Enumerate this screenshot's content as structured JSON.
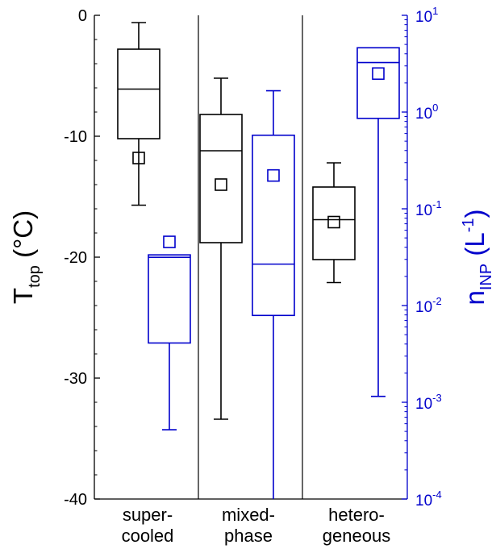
{
  "chart_data": {
    "type": "box",
    "title": "",
    "categories": [
      "super-\ncooled",
      "mixed-\nphase",
      "hetero-\ngeneous"
    ],
    "left_axis": {
      "label_main": "T",
      "label_sub": "top",
      "label_unit": " (°C)",
      "ylim": [
        -40,
        0
      ],
      "ticks": [
        0,
        -10,
        -20,
        -30,
        -40
      ],
      "tick_labels": [
        "0",
        "-10",
        "-20",
        "-30",
        "-40"
      ],
      "color": "#000000"
    },
    "right_axis": {
      "label_main": "n",
      "label_sub": "INP",
      "label_unit_pre": " (L",
      "label_unit_sup": "-1",
      "label_unit_post": ")",
      "scale": "log",
      "ylim": [
        0.0001,
        10
      ],
      "ticks": [
        10,
        1,
        0.1,
        0.01,
        0.001,
        0.0001
      ],
      "tick_mantissa": [
        "10",
        "10",
        "10",
        "10",
        "10",
        "10"
      ],
      "tick_exponent": [
        "1",
        "0",
        "-1",
        "-2",
        "-3",
        "-4"
      ],
      "color": "#0000cc"
    },
    "series": [
      {
        "axis": "left",
        "color": "#000000",
        "boxes": [
          {
            "category": 0,
            "whisker_low": -15.7,
            "q1": -10.2,
            "median": -6.1,
            "q3": -2.8,
            "whisker_high": -0.6,
            "mean": -11.8
          },
          {
            "category": 1,
            "whisker_low": -33.4,
            "q1": -18.8,
            "median": -11.2,
            "q3": -8.2,
            "whisker_high": -5.2,
            "mean": -14.0
          },
          {
            "category": 2,
            "whisker_low": -22.1,
            "q1": -20.2,
            "median": -16.9,
            "q3": -14.2,
            "whisker_high": -12.2,
            "mean": -17.1
          }
        ]
      },
      {
        "axis": "right",
        "color": "#0000cc",
        "boxes": [
          {
            "category": 0,
            "whisker_low": 0.00052,
            "q1": 0.0041,
            "median": 0.0315,
            "q3": 0.0334,
            "whisker_high": 0.0334,
            "mean": 0.0455
          },
          {
            "category": 1,
            "whisker_low": 0.0001,
            "q1": 0.0079,
            "median": 0.0268,
            "q3": 0.576,
            "whisker_high": 1.66,
            "mean": 0.221
          },
          {
            "category": 2,
            "whisker_low": 0.00115,
            "q1": 0.86,
            "median": 3.25,
            "q3": 4.62,
            "whisker_high": 4.62,
            "mean": 2.5
          }
        ]
      }
    ]
  }
}
